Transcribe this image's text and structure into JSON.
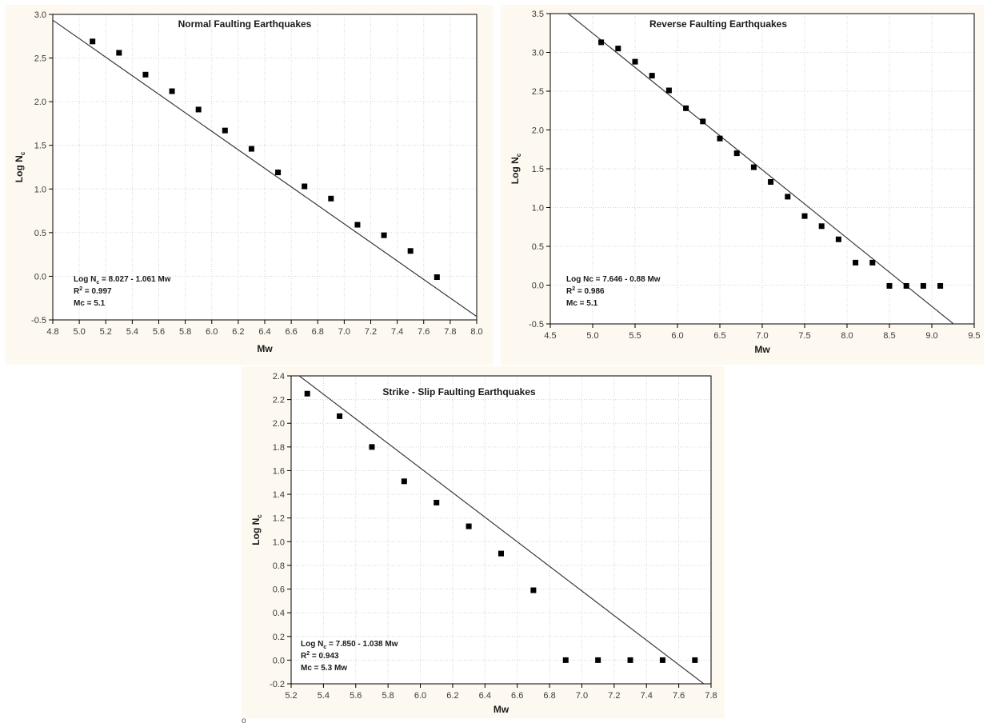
{
  "stray_mark": "o",
  "chart_data": [
    {
      "type": "scatter",
      "title": "Normal Faulting Earthquakes",
      "xlabel": "Mw",
      "ylabel_main": "Log N",
      "ylabel_sub": "c",
      "xlim": [
        4.8,
        8.0
      ],
      "ylim": [
        -0.5,
        3.0
      ],
      "xticks": [
        "4.8",
        "5.0",
        "5.2",
        "5.4",
        "5.6",
        "5.8",
        "6.0",
        "6.2",
        "6.4",
        "6.6",
        "6.8",
        "7.0",
        "7.2",
        "7.4",
        "7.6",
        "7.8",
        "8.0"
      ],
      "yticks": [
        "-0.5",
        "0.0",
        "0.5",
        "1.0",
        "1.5",
        "2.0",
        "2.5",
        "3.0"
      ],
      "x": [
        5.1,
        5.3,
        5.5,
        5.7,
        5.9,
        6.1,
        6.3,
        6.5,
        6.7,
        6.9,
        7.1,
        7.3,
        7.5,
        7.7
      ],
      "y": [
        2.69,
        2.56,
        2.31,
        2.12,
        1.91,
        1.67,
        1.46,
        1.19,
        1.03,
        0.89,
        0.59,
        0.47,
        0.29,
        -0.01
      ],
      "fit": {
        "intercept": 8.027,
        "slope": -1.061
      },
      "equation_main": "Log N",
      "equation_sub": "c",
      "equation_rest": " = 8.027 - 1.061 Mw",
      "r2_label": "R",
      "r2_sup": "2",
      "r2_value": " = 0.997",
      "mc_text": "Mc = 5.1",
      "grid": true
    },
    {
      "type": "scatter",
      "title": "Reverse Faulting Earthquakes",
      "xlabel": "Mw",
      "ylabel_main": "Log N",
      "ylabel_sub": "c",
      "xlim": [
        4.5,
        9.5
      ],
      "ylim": [
        -0.5,
        3.5
      ],
      "xticks": [
        "4.5",
        "5.0",
        "5.5",
        "6.0",
        "6.5",
        "7.0",
        "7.5",
        "8.0",
        "8.5",
        "9.0",
        "9.5"
      ],
      "yticks": [
        "-0.5",
        "0.0",
        "0.5",
        "1.0",
        "1.5",
        "2.0",
        "2.5",
        "3.0",
        "3.5"
      ],
      "x": [
        5.1,
        5.3,
        5.5,
        5.7,
        5.9,
        6.1,
        6.3,
        6.5,
        6.7,
        6.9,
        7.1,
        7.3,
        7.5,
        7.7,
        7.9,
        8.1,
        8.3,
        8.5,
        8.7,
        8.9,
        9.1
      ],
      "y": [
        3.13,
        3.05,
        2.88,
        2.7,
        2.51,
        2.28,
        2.11,
        1.89,
        1.7,
        1.52,
        1.33,
        1.14,
        0.89,
        0.76,
        0.59,
        0.29,
        0.29,
        -0.01,
        -0.01,
        -0.01,
        -0.01
      ],
      "fit": {
        "intercept": 7.646,
        "slope": -0.88
      },
      "equation_main": "Log Nc",
      "equation_sub": "",
      "equation_rest": " = 7.646 - 0.88 Mw",
      "r2_label": "R",
      "r2_sup": "2",
      "r2_value": " = 0.986",
      "mc_text": "Mc = 5.1",
      "grid": true
    },
    {
      "type": "scatter",
      "title": "Strike - Slip Faulting Earthquakes",
      "xlabel": "Mw",
      "ylabel_main": "Log N",
      "ylabel_sub": "c",
      "xlim": [
        5.2,
        7.8
      ],
      "ylim": [
        -0.2,
        2.4
      ],
      "xticks": [
        "5.2",
        "5.4",
        "5.6",
        "5.8",
        "6.0",
        "6.2",
        "6.4",
        "6.6",
        "6.8",
        "7.0",
        "7.2",
        "7.4",
        "7.6",
        "7.8"
      ],
      "yticks": [
        "-0.2",
        "0.0",
        "0.2",
        "0.4",
        "0.6",
        "0.8",
        "1.0",
        "1.2",
        "1.4",
        "1.6",
        "1.8",
        "2.0",
        "2.2",
        "2.4"
      ],
      "x": [
        5.3,
        5.5,
        5.7,
        5.9,
        6.1,
        6.3,
        6.5,
        6.7,
        6.9,
        7.1,
        7.3,
        7.5,
        7.7
      ],
      "y": [
        2.25,
        2.06,
        1.8,
        1.51,
        1.33,
        1.13,
        0.9,
        0.59,
        0.0,
        0.0,
        0.0,
        0.0,
        0.0
      ],
      "fit": {
        "intercept": 7.85,
        "slope": -1.038
      },
      "equation_main": "Log N",
      "equation_sub": "c",
      "equation_rest": " = 7.850 - 1.038 Mw",
      "r2_label": "R",
      "r2_sup": "2",
      "r2_value": " = 0.943",
      "mc_text": "Mc = 5.3 Mw",
      "grid": true
    }
  ]
}
